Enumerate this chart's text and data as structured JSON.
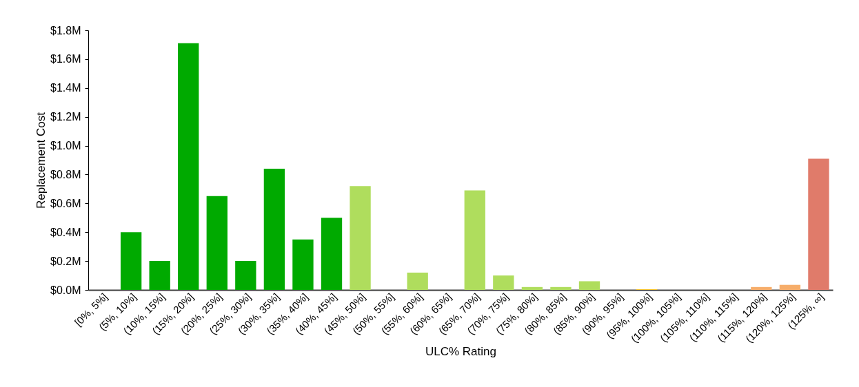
{
  "chart_data": {
    "type": "bar",
    "xlabel": "ULC% Rating",
    "ylabel": "Replacement Cost",
    "categories": [
      "[0%, 5%]",
      "(5%, 10%]",
      "(10%, 15%]",
      "(15%, 20%]",
      "(20%, 25%]",
      "(25%, 30%]",
      "(30%, 35%]",
      "(35%, 40%]",
      "(40%, 45%]",
      "(45%, 50%]",
      "(50%, 55%]",
      "(55%, 60%]",
      "(60%, 65%]",
      "(65%, 70%]",
      "(70%, 75%]",
      "(75%, 80%]",
      "(80%, 85%]",
      "(85%, 90%]",
      "(90%, 95%]",
      "(95%, 100%]",
      "(100%, 105%]",
      "(105%, 110%]",
      "(110%, 115%]",
      "(115%, 120%]",
      "(120%, 125%]",
      "(125%, ∞]"
    ],
    "values": [
      null,
      0.4,
      0.2,
      1.71,
      0.65,
      0.2,
      0.84,
      0.35,
      0.5,
      0.72,
      null,
      0.12,
      null,
      0.69,
      0.1,
      0.02,
      0.02,
      0.06,
      null,
      0.005,
      null,
      null,
      null,
      0.02,
      0.035,
      0.91
    ],
    "colors": [
      "#00aa00",
      "#00aa00",
      "#00aa00",
      "#00aa00",
      "#00aa00",
      "#00aa00",
      "#00aa00",
      "#00aa00",
      "#00aa00",
      "#afdd5d",
      "#afdd5d",
      "#afdd5d",
      "#afdd5d",
      "#afdd5d",
      "#afdd5d",
      "#afdd5d",
      "#afdd5d",
      "#afdd5d",
      "#f2c12e",
      "#f2c12e",
      "#f6ad6a",
      "#f6ad6a",
      "#f6ad6a",
      "#f6ad6a",
      "#f6ad6a",
      "#e07b6a"
    ],
    "ylim": [
      0,
      1.8
    ],
    "yticks": [
      {
        "value": 0,
        "label": "$0.0M"
      },
      {
        "value": 0.2,
        "label": "$0.2M"
      },
      {
        "value": 0.4,
        "label": "$0.4M"
      },
      {
        "value": 0.6,
        "label": "$0.6M"
      },
      {
        "value": 0.8,
        "label": "$0.8M"
      },
      {
        "value": 1.0,
        "label": "$1.0M"
      },
      {
        "value": 1.2,
        "label": "$1.2M"
      },
      {
        "value": 1.4,
        "label": "$1.4M"
      },
      {
        "value": 1.6,
        "label": "$1.6M"
      },
      {
        "value": 1.8,
        "label": "$1.8M"
      }
    ],
    "grid": false
  }
}
